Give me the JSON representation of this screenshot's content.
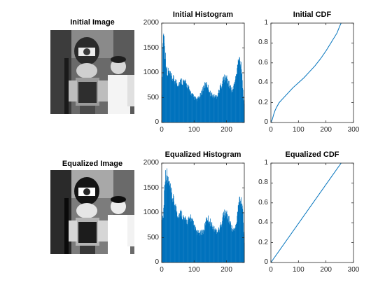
{
  "chart_data": [
    {
      "type": "image",
      "title": "Initial Image",
      "content": "grayscale photo of a man standing next to a toy soldier statue"
    },
    {
      "type": "bar",
      "title": "Initial Histogram",
      "xlim": [
        0,
        255
      ],
      "ylim": [
        0,
        2000
      ],
      "xticks": [
        0,
        100,
        200
      ],
      "yticks": [
        0,
        500,
        1000,
        1500,
        2000
      ],
      "series": [
        {
          "color": "#0072BD",
          "x": [
            0,
            3,
            5,
            8,
            10,
            12,
            15,
            18,
            20,
            25,
            30,
            40,
            50,
            60,
            70,
            80,
            90,
            100,
            110,
            120,
            130,
            140,
            150,
            160,
            170,
            180,
            190,
            200,
            210,
            220,
            225,
            230,
            235,
            240,
            245,
            248,
            250,
            252,
            255
          ],
          "y": [
            20,
            1650,
            1950,
            1850,
            1550,
            1450,
            1200,
            1000,
            1150,
            1050,
            1000,
            930,
            850,
            920,
            900,
            800,
            650,
            550,
            500,
            600,
            800,
            850,
            650,
            580,
            580,
            750,
            950,
            1000,
            800,
            700,
            900,
            1000,
            1300,
            1400,
            1300,
            1100,
            800,
            600,
            380
          ]
        }
      ]
    },
    {
      "type": "line",
      "title": "Initial CDF",
      "xlim": [
        0,
        300
      ],
      "ylim": [
        0,
        1
      ],
      "xticks": [
        0,
        100,
        200,
        300
      ],
      "yticks": [
        0,
        0.2,
        0.4,
        0.6,
        0.8,
        1
      ],
      "series": [
        {
          "color": "#0072BD",
          "x": [
            0,
            5,
            10,
            15,
            20,
            30,
            40,
            50,
            60,
            80,
            100,
            120,
            140,
            160,
            180,
            200,
            220,
            240,
            250,
            255
          ],
          "y": [
            0,
            0.03,
            0.08,
            0.12,
            0.15,
            0.2,
            0.23,
            0.26,
            0.29,
            0.35,
            0.4,
            0.45,
            0.51,
            0.57,
            0.64,
            0.72,
            0.81,
            0.9,
            0.97,
            1.0
          ]
        }
      ]
    },
    {
      "type": "image",
      "title": "Equalized Image",
      "content": "contrast-enhanced grayscale photo of the same scene"
    },
    {
      "type": "bar",
      "title": "Equalized Histogram",
      "xlim": [
        0,
        255
      ],
      "ylim": [
        0,
        2000
      ],
      "xticks": [
        0,
        100,
        200
      ],
      "yticks": [
        0,
        500,
        1000,
        1500,
        2000
      ],
      "series": [
        {
          "color": "#0072BD",
          "x": [
            0,
            5,
            10,
            15,
            20,
            30,
            40,
            50,
            60,
            70,
            80,
            90,
            100,
            110,
            120,
            130,
            140,
            150,
            160,
            170,
            180,
            190,
            200,
            210,
            220,
            230,
            235,
            240,
            245,
            250,
            255
          ],
          "y": [
            1050,
            1000,
            1900,
            1950,
            1800,
            1500,
            1300,
            1050,
            1100,
            950,
            900,
            1000,
            800,
            650,
            650,
            700,
            1000,
            900,
            750,
            700,
            750,
            1050,
            1100,
            900,
            700,
            800,
            1150,
            1400,
            1400,
            1250,
            400
          ]
        }
      ]
    },
    {
      "type": "line",
      "title": "Equalized CDF",
      "xlim": [
        0,
        300
      ],
      "ylim": [
        0,
        1
      ],
      "xticks": [
        0,
        100,
        200,
        300
      ],
      "yticks": [
        0,
        0.2,
        0.4,
        0.6,
        0.8,
        1
      ],
      "series": [
        {
          "color": "#0072BD",
          "x": [
            0,
            255
          ],
          "y": [
            0,
            1.0
          ]
        }
      ]
    }
  ]
}
